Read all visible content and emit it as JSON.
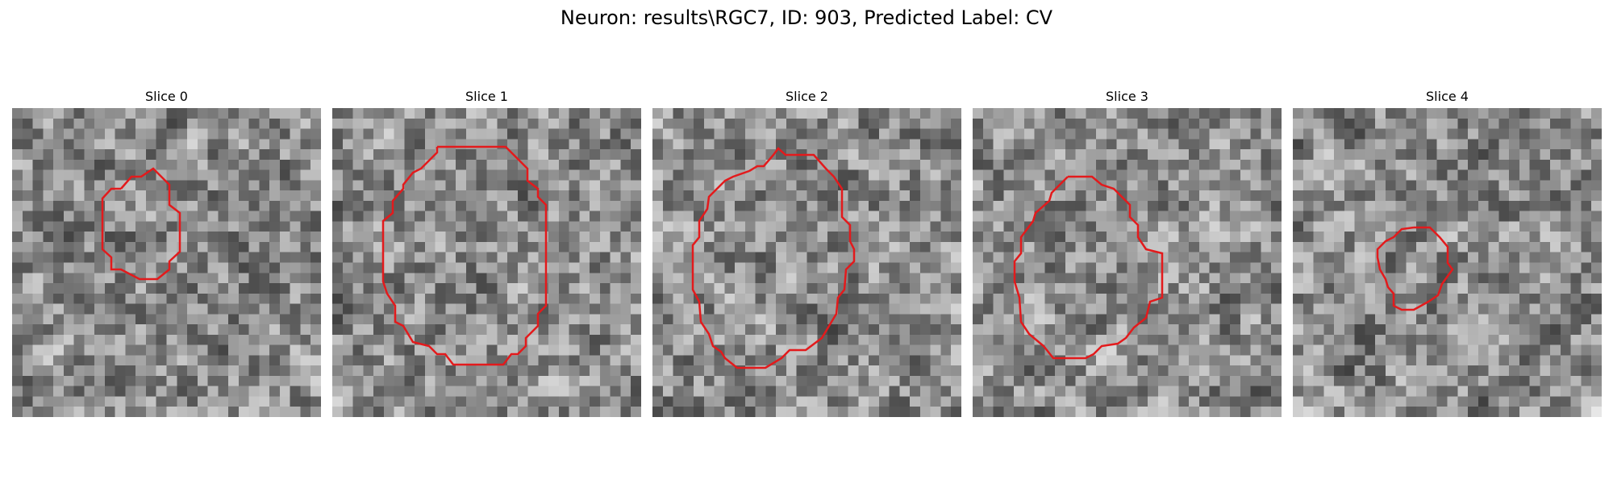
{
  "figure": {
    "title": "Neuron: results\\RGC7, ID: 903, Predicted Label: CV"
  },
  "panels": [
    {
      "title": "Slice 0",
      "seed": 11,
      "contour_color": "#e31a1c"
    },
    {
      "title": "Slice 1",
      "seed": 23,
      "contour_color": "#e31a1c"
    },
    {
      "title": "Slice 2",
      "seed": 37,
      "contour_color": "#e31a1c"
    },
    {
      "title": "Slice 3",
      "seed": 41,
      "contour_color": "#e31a1c"
    },
    {
      "title": "Slice 4",
      "seed": 59,
      "contour_color": "#e31a1c"
    }
  ]
}
